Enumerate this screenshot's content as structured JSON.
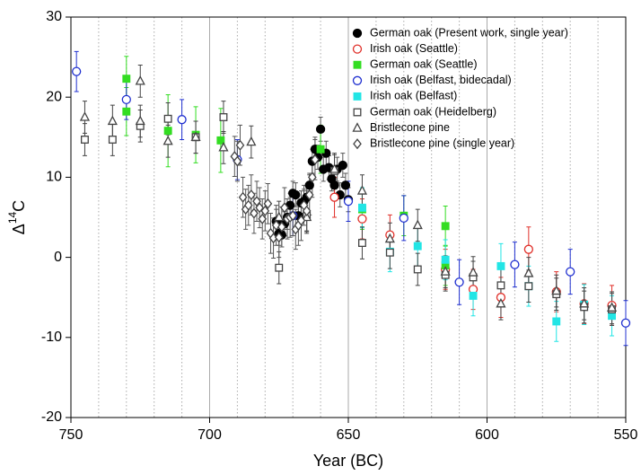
{
  "chart_data": {
    "type": "scatter",
    "xlabel": "Year (BC)",
    "ylabel": {
      "base": "Δ",
      "sup": "14",
      "unit": "C"
    },
    "xlim": [
      750,
      550
    ],
    "ylim": [
      -20,
      30
    ],
    "xticks": [
      750,
      700,
      650,
      600,
      550
    ],
    "yticks": [
      -20,
      -10,
      0,
      10,
      20,
      30
    ],
    "major_xgrid": [
      700,
      650,
      600
    ],
    "minor_xgrid": [
      740,
      730,
      720,
      710,
      690,
      680,
      670,
      660,
      640,
      630,
      620,
      610,
      590,
      580,
      570,
      560
    ],
    "legend": "upper right",
    "series": [
      {
        "name": "German oak (Present work, single year)",
        "marker": "circle",
        "filled": true,
        "color": "#000000",
        "error_color": "#555555",
        "x": [
          676,
          675,
          674,
          673,
          672,
          671,
          670,
          669,
          668,
          667,
          666,
          665,
          664,
          663,
          662,
          661,
          660,
          659,
          658,
          657,
          656,
          655,
          654,
          653,
          652,
          651,
          650
        ],
        "values": [
          4.5,
          3,
          2.8,
          4.2,
          5,
          6.5,
          8,
          7.8,
          5.2,
          6.8,
          7,
          7.5,
          9,
          12,
          13.5,
          12.5,
          16,
          11,
          13,
          11.2,
          9.8,
          9,
          11,
          7.8,
          11.5,
          9,
          7.2
        ],
        "errors": [
          1.5,
          1.5,
          1.5,
          1.5,
          1.5,
          1.5,
          1.5,
          1.5,
          1.5,
          1.5,
          1.5,
          1.5,
          1.5,
          1.5,
          1.5,
          1.5,
          1.5,
          1.5,
          1.5,
          1.5,
          1.5,
          1.5,
          1.5,
          1.5,
          1.5,
          1.5,
          1.5
        ]
      },
      {
        "name": "Irish oak (Seattle)",
        "marker": "circle",
        "filled": false,
        "color": "#e0302a",
        "error_color": "#e0302a",
        "x": [
          655,
          645,
          635,
          615,
          605,
          595,
          585,
          575,
          565,
          555
        ],
        "values": [
          7.5,
          4.8,
          2.8,
          -1.5,
          -4,
          -5,
          1,
          -4.3,
          -5.8,
          -6
        ],
        "errors": [
          2.5,
          2.5,
          2.5,
          2.5,
          2.5,
          2.5,
          2.8,
          2.5,
          2.5,
          2.5
        ]
      },
      {
        "name": "German oak (Seattle)",
        "marker": "square",
        "filled": true,
        "color": "#33dd22",
        "error_color": "#33dd22",
        "x": [
          730,
          730,
          715,
          705,
          696,
          660,
          645,
          630,
          615,
          615
        ],
        "values": [
          22.3,
          18.2,
          15.8,
          15.3,
          14.6,
          13.5,
          6,
          5.2,
          3.9,
          -1
        ],
        "errors": [
          2.8,
          3,
          4.5,
          3.5,
          4,
          3,
          2.5,
          2.5,
          2.5,
          2.5
        ]
      },
      {
        "name": "Irish oak (Belfast, bidecadal)",
        "marker": "circle",
        "filled": false,
        "color": "#2030d0",
        "error_color": "#2030d0",
        "x": [
          748,
          730,
          710,
          690,
          670,
          650,
          630,
          610,
          590,
          570,
          550
        ],
        "values": [
          23.2,
          19.7,
          17.2,
          12.2,
          5.2,
          7,
          4.9,
          -3.1,
          -0.9,
          -1.8,
          -8.2
        ],
        "errors": [
          2.5,
          2.5,
          2.5,
          2.5,
          2.5,
          2.5,
          2.8,
          2.8,
          2.8,
          2.8,
          2.8
        ]
      },
      {
        "name": "Irish oak (Belfast)",
        "marker": "square",
        "filled": true,
        "color": "#22e5e5",
        "error_color": "#22e5e5",
        "x": [
          645,
          635,
          625,
          615,
          605,
          595,
          585,
          575,
          565,
          555
        ],
        "values": [
          6.2,
          0.7,
          1.4,
          -0.3,
          -4.8,
          -1.1,
          -3.6,
          -8,
          -5.9,
          -7.3
        ],
        "errors": [
          2.5,
          2.5,
          2.5,
          2.5,
          2.5,
          2.8,
          2.5,
          2.5,
          2.5,
          2.5
        ]
      },
      {
        "name": "German oak (Heidelberg)",
        "marker": "square",
        "filled": false,
        "color": "#444444",
        "error_color": "#444444",
        "x": [
          745,
          735,
          725,
          715,
          705,
          695,
          675,
          665,
          655,
          645,
          635,
          625,
          615,
          605,
          595,
          585,
          575,
          565,
          555
        ],
        "values": [
          14.7,
          14.7,
          16.4,
          17.3,
          15,
          17.5,
          -1.3,
          5.2,
          10.8,
          1.8,
          0.6,
          -1.5,
          -2.2,
          -2.5,
          -3.5,
          -3.6,
          -4.6,
          -6.2,
          -6.5
        ],
        "errors": [
          2,
          2,
          2,
          2,
          2,
          2,
          2,
          2,
          2,
          2,
          2,
          2,
          2,
          2,
          2,
          2,
          2,
          2,
          2
        ]
      },
      {
        "name": "Bristlecone pine",
        "marker": "triangle",
        "filled": false,
        "color": "#444444",
        "error_color": "#444444",
        "x": [
          745,
          735,
          725,
          725,
          715,
          705,
          695,
          685,
          675,
          665,
          655,
          645,
          635,
          625,
          615,
          605,
          595,
          585,
          575,
          565,
          555
        ],
        "values": [
          17.5,
          17,
          22,
          17,
          14.5,
          15,
          13.7,
          14.4,
          5,
          5,
          11,
          8.3,
          2.3,
          4,
          -1.8,
          -1.9,
          -5.8,
          -2,
          -4.2,
          -5.8,
          -6.3
        ],
        "errors": [
          2,
          2,
          2,
          2,
          2,
          2,
          2,
          2,
          2,
          2,
          2,
          2,
          2,
          2,
          2,
          2,
          2,
          2,
          2,
          2,
          2
        ]
      },
      {
        "name": "Bristlecone pine (single year)",
        "marker": "diamond",
        "filled": false,
        "color": "#444444",
        "error_color": "#555555",
        "x": [
          691,
          690,
          689,
          688,
          687,
          686,
          685,
          684,
          683,
          682,
          681,
          680,
          679,
          678,
          677,
          676,
          675,
          674,
          673,
          672,
          671,
          670,
          669,
          668,
          667,
          666,
          665,
          664,
          663,
          662
        ],
        "values": [
          12.6,
          12,
          14,
          7.5,
          6,
          6.5,
          7.8,
          5.5,
          7,
          6.2,
          4.8,
          5.8,
          6.7,
          3,
          2.4,
          4,
          2.5,
          3.8,
          6.2,
          4.8,
          5,
          5.2,
          3.5,
          4,
          4.6,
          6.5,
          5.8,
          7.8,
          10,
          12.2
        ],
        "errors": [
          2.5,
          2.5,
          2.5,
          2.5,
          2.5,
          2.5,
          2.5,
          2.5,
          2.5,
          2.5,
          2.5,
          2.5,
          2.5,
          2.5,
          2.5,
          2.5,
          2.5,
          2.5,
          2.5,
          2.5,
          2.5,
          2.5,
          2.5,
          2.5,
          2.5,
          2.5,
          2.5,
          2.5,
          2.5,
          2.5
        ]
      }
    ]
  }
}
